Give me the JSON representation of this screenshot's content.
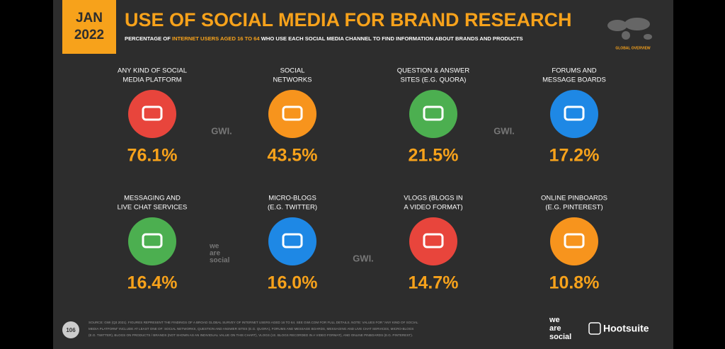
{
  "header": {
    "date_line1": "JAN",
    "date_line2": "2022",
    "title": "USE OF SOCIAL MEDIA FOR BRAND RESEARCH",
    "subtitle_parts": [
      "PERCENTAGE OF ",
      "INTERNET USERS AGED 16 TO 64",
      " WHO USE EACH SOCIAL MEDIA CHANNEL TO FIND INFORMATION ABOUT BRANDS AND PRODUCTS"
    ],
    "badge": "GLOBAL OVERVIEW"
  },
  "items": [
    {
      "label": [
        "ANY KIND OF SOCIAL",
        "MEDIA PLATFORM"
      ],
      "value": "76.1%",
      "color": "#e8453c"
    },
    {
      "label": [
        "SOCIAL",
        "NETWORKS"
      ],
      "value": "43.5%",
      "color": "#f7941d"
    },
    {
      "label": [
        "QUESTION & ANSWER",
        "SITES (E.G. QUORA)"
      ],
      "value": "21.5%",
      "color": "#4caf50"
    },
    {
      "label": [
        "FORUMS AND",
        "MESSAGE BOARDS"
      ],
      "value": "17.2%",
      "color": "#1e88e5"
    },
    {
      "label": [
        "MESSAGING AND",
        "LIVE CHAT SERVICES"
      ],
      "value": "16.4%",
      "color": "#4caf50"
    },
    {
      "label": [
        "MICRO-BLOGS",
        "(E.G. TWITTER)"
      ],
      "value": "16.0%",
      "color": "#1e88e5"
    },
    {
      "label": [
        "VLOGS (BLOGS IN",
        "A VIDEO FORMAT)"
      ],
      "value": "14.7%",
      "color": "#e8453c"
    },
    {
      "label": [
        "ONLINE PINBOARDS",
        "(E.G. PINTEREST)"
      ],
      "value": "10.8%",
      "color": "#f7941d"
    }
  ],
  "watermarks": [
    "GWI.",
    "GWI.",
    "GWI.",
    "we",
    "are",
    "social"
  ],
  "footer": {
    "page": "106",
    "source": [
      "SOURCE: GWI (Q3 2021). FIGURES REPRESENT THE FINDINGS OF A BROAD GLOBAL SURVEY OF INTERNET USERS AGED 16 TO 64. SEE GWI.COM FOR FULL DETAILS. NOTE: VALUES FOR \"ANY KIND OF SOCIAL",
      "MEDIA PLATFORM\" INCLUDE AT LEAST ONE OF: SOCIAL NETWORKS, QUESTION AND ANSWER SITES (E.G. QUORA), FORUMS AND MESSAGE BOARDS, MESSAGING AND LIVE CHAT SERVICES, MICRO-BLOGS",
      "(E.G. TWITTER), BLOGS ON PRODUCTS / BRANDS (NOT SHOWN AS AN INDIVIDUAL VALUE ON THIS CHART), VLOGS (I.E. BLOGS RECORDED IN A VIDEO FORMAT), AND ONLINE PINBOARDS (E.G. PINTEREST)."
    ],
    "logo1": [
      "we",
      "are",
      "social"
    ],
    "logo2": "Hootsuite"
  }
}
